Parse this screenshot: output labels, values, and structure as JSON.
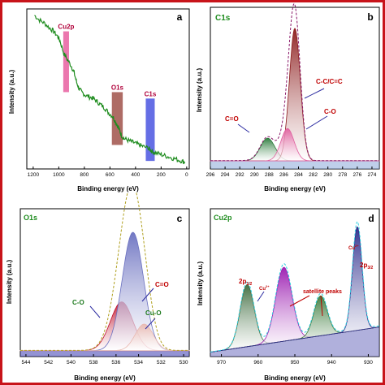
{
  "chart_data": [
    {
      "type": "line",
      "panel_letter": "a",
      "xlabel": "Binding energy (eV)",
      "ylabel": "Intensity (a.u.)",
      "xlim": [
        1250,
        -20
      ],
      "ylim": [
        0,
        100
      ],
      "x_ticks": [
        1200,
        1000,
        800,
        600,
        400,
        200,
        0
      ],
      "series": [
        {
          "color": "#1e8c1e",
          "x": [
            1190,
            1150,
            1110,
            1070,
            1040,
            1010,
            990,
            960,
            930,
            900,
            880,
            860,
            840,
            820,
            790,
            760,
            730,
            700,
            670,
            640,
            610,
            580,
            560,
            540,
            525,
            510,
            490,
            460,
            430,
            400,
            370,
            340,
            300,
            285,
            270,
            240,
            200,
            160,
            120,
            80,
            40,
            10
          ],
          "y": [
            96,
            93,
            91,
            88,
            86,
            83,
            80,
            72,
            68,
            64,
            60,
            54,
            50,
            48,
            46,
            45,
            44,
            42,
            40,
            38,
            35,
            33,
            30,
            27,
            24,
            21,
            19,
            18,
            17,
            16,
            15,
            14,
            13,
            12,
            11,
            10,
            9,
            8,
            7,
            6,
            5,
            4
          ]
        }
      ],
      "annotations": [
        {
          "label": "Cu2p",
          "label_color": "#b0003a",
          "fill": "#e75fa0",
          "x_from": 965,
          "x_to": 920,
          "y_from": 48,
          "y_to": 86
        },
        {
          "label": "O1s",
          "label_color": "#b0003a",
          "fill": "#a0524a",
          "x_from": 585,
          "x_to": 500,
          "y_from": 15,
          "y_to": 48
        },
        {
          "label": "C1s",
          "label_color": "#b0003a",
          "fill": "#4a55e0",
          "x_from": 320,
          "x_to": 250,
          "y_from": 5,
          "y_to": 44
        }
      ]
    },
    {
      "type": "area",
      "panel_letter": "b",
      "title": "C1s",
      "xlabel": "Binding energy (eV)",
      "ylabel": "Intensity (a.u.)",
      "xlim": [
        296,
        273
      ],
      "ylim": [
        0,
        100
      ],
      "x_ticks": [
        296,
        294,
        292,
        290,
        288,
        286,
        284,
        282,
        280,
        278,
        276,
        274
      ],
      "baseline": 5,
      "peaks": [
        {
          "label": "C=O",
          "center": 288.2,
          "height": 14,
          "width": 1.0,
          "fill": "#2a7a3a"
        },
        {
          "label": "C-C/C=C",
          "center": 284.5,
          "height": 82,
          "width": 0.75,
          "fill": "#8b1a1a"
        },
        {
          "label": "C-O",
          "center": 285.5,
          "height": 20,
          "width": 0.9,
          "fill": "#e0609f"
        }
      ]
    },
    {
      "type": "area",
      "panel_letter": "c",
      "title": "O1s",
      "xlabel": "Binding energy (eV)",
      "ylabel": "Intensity (a.u.)",
      "xlim": [
        544.5,
        529.5
      ],
      "ylim": [
        0,
        100
      ],
      "x_ticks": [
        544,
        542,
        540,
        538,
        536,
        534,
        532,
        530
      ],
      "baseline": 4,
      "peaks": [
        {
          "label": "C-O",
          "center": 535.5,
          "height": 33,
          "width": 1.0,
          "fill": "#c0102a"
        },
        {
          "label": "C=O",
          "center": 534.5,
          "height": 80,
          "width": 0.95,
          "fill": "#6a70c0"
        },
        {
          "label": "Cu-O",
          "center": 533.5,
          "height": 18,
          "width": 0.8,
          "fill": "#e8b8b0"
        }
      ]
    },
    {
      "type": "area",
      "panel_letter": "d",
      "title": "Cu2p",
      "xlabel": "Binding energy (eV)",
      "ylabel": "Intensity (a.u.)",
      "xlim": [
        973,
        927
      ],
      "ylim": [
        0,
        100
      ],
      "x_ticks": [
        970,
        960,
        950,
        940,
        930
      ],
      "baseline_from": 3,
      "baseline_to": 20,
      "peaks": [
        {
          "center": 963,
          "height": 42,
          "width": 1.9,
          "fill": "#3c6a3c"
        },
        {
          "center": 953,
          "height": 50,
          "width": 2.2,
          "fill": "#9a1ab0"
        },
        {
          "center": 943,
          "height": 27,
          "width": 1.8,
          "fill": "#3a7a3a"
        },
        {
          "center": 933,
          "height": 70,
          "width": 1.3,
          "fill": "#2a2a8a"
        }
      ],
      "labels": {
        "peak1": "2p",
        "peak1_sub": "1/2",
        "cu2": "Cu",
        "cu2_sup": "2+",
        "satellite": "satellite peaks",
        "peak2": "2p",
        "peak2_sub": "3/2",
        "cu2b": "Cu",
        "cu2b_sup": "2+"
      }
    }
  ]
}
